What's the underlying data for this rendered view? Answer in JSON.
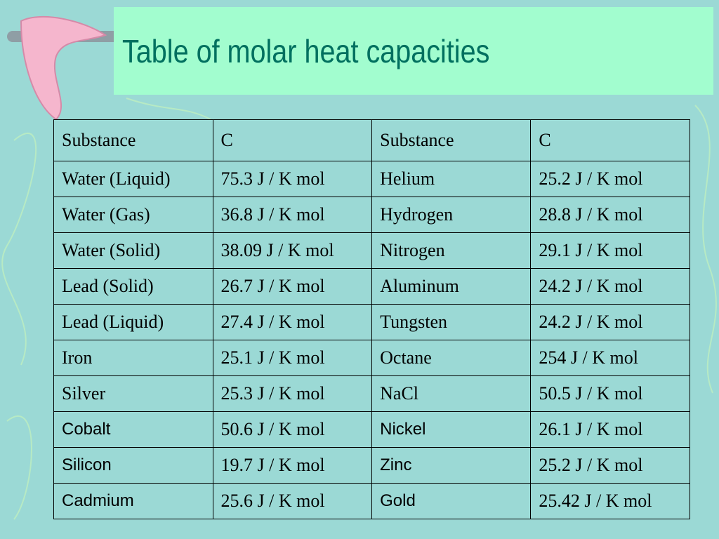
{
  "title": "Table of molar heat capacities",
  "table": {
    "header": [
      "Substance",
      "C",
      "Substance",
      "C"
    ],
    "rows": [
      [
        "Water (Liquid)",
        "75.3 J / K mol",
        "Helium",
        "25.2 J / K mol"
      ],
      [
        "Water (Gas)",
        "36.8 J / K mol",
        "Hydrogen",
        "28.8 J / K mol"
      ],
      [
        "Water (Solid)",
        "38.09 J / K mol",
        "Nitrogen",
        "29.1 J / K mol"
      ],
      [
        "Lead (Solid)",
        "26.7 J / K mol",
        "Aluminum",
        "24.2 J / K mol"
      ],
      [
        "Lead (Liquid)",
        "27.4 J / K mol",
        "Tungsten",
        "24.2 J / K mol"
      ],
      [
        "Iron",
        "25.1 J / K mol",
        "Octane",
        "254 J / K mol"
      ],
      [
        "Silver",
        "25.3 J / K mol",
        "NaCl",
        "50.5 J / K mol"
      ],
      [
        "Cobalt",
        "50.6 J / K mol",
        "Nickel",
        "26.1 J / K mol"
      ],
      [
        "Silicon",
        "19.7 J / K mol",
        "Zinc",
        "25.2 J / K mol"
      ],
      [
        "Cadmium",
        "25.6 J / K mol",
        "Gold",
        "25.42 J / K mol"
      ]
    ]
  }
}
